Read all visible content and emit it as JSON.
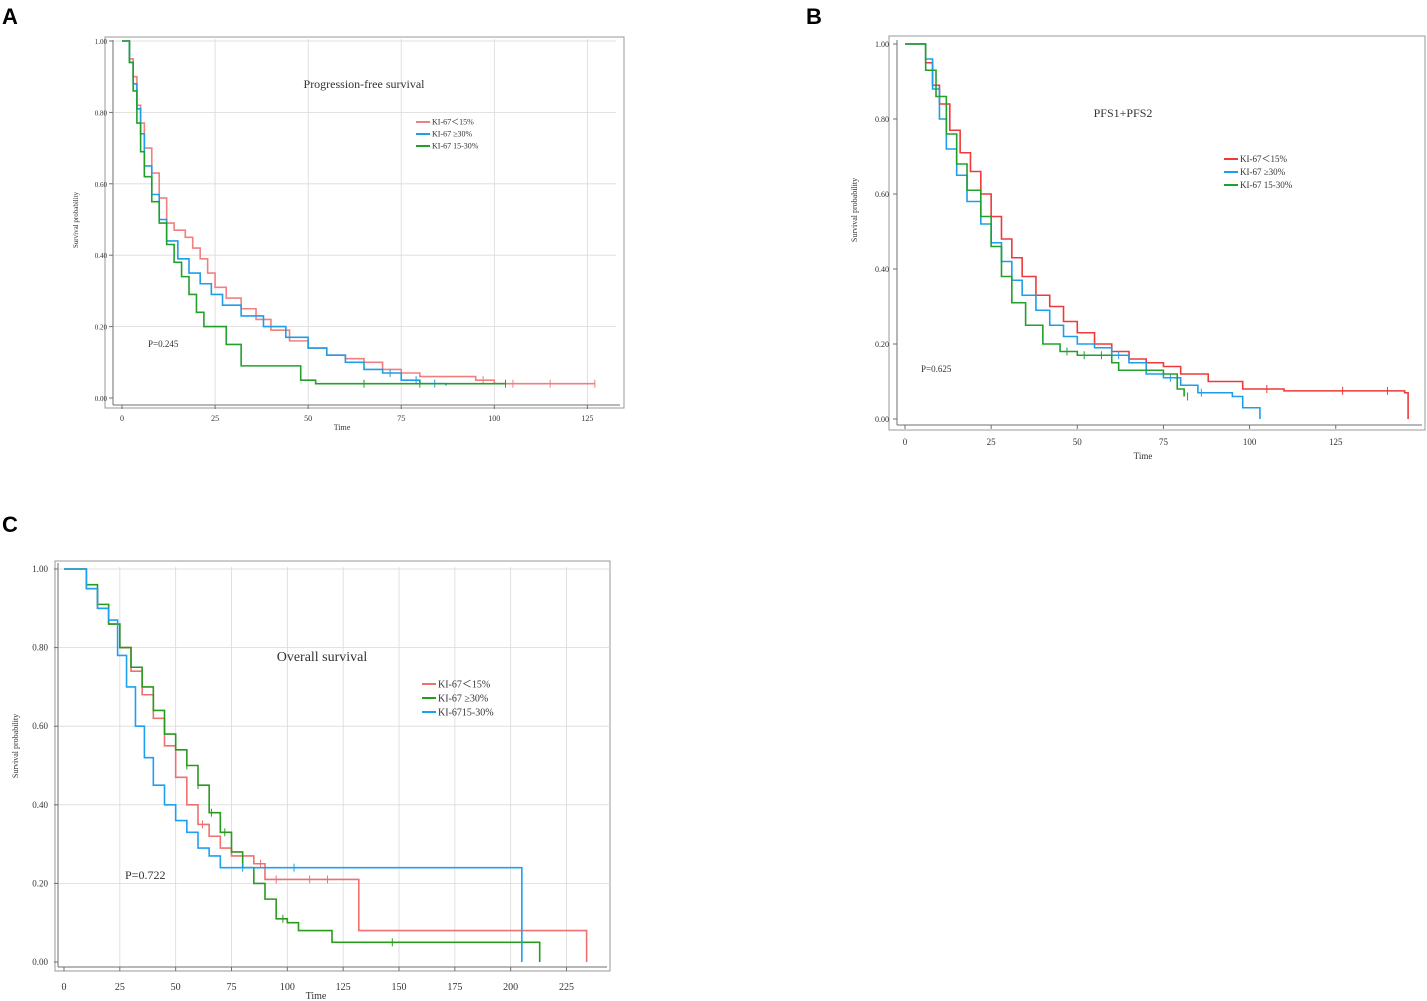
{
  "panels": [
    {
      "letter": "A"
    },
    {
      "letter": "B"
    },
    {
      "letter": "C"
    }
  ],
  "chart_data": [
    {
      "type": "line",
      "title": "Progression-free survival",
      "xlabel": "Time",
      "ylabel": "Survival probability",
      "xlim": [
        0,
        130
      ],
      "ylim": [
        0,
        1
      ],
      "xticks": [
        0,
        25,
        50,
        75,
        100,
        125
      ],
      "yticks": [
        0,
        0.2,
        0.4,
        0.6,
        0.8,
        1.0
      ],
      "ytick_labels": [
        "0.00",
        "0.20",
        "0.40",
        "0.60",
        "0.80",
        "1.00"
      ],
      "grid": true,
      "annotation": "P=0.245",
      "legend_position": "top-right",
      "series": [
        {
          "name": "KI-67＜15%",
          "color": "#f08080",
          "points": [
            [
              0,
              1
            ],
            [
              1,
              1
            ],
            [
              2,
              0.95
            ],
            [
              3,
              0.9
            ],
            [
              4,
              0.82
            ],
            [
              5,
              0.77
            ],
            [
              6,
              0.7
            ],
            [
              8,
              0.63
            ],
            [
              10,
              0.56
            ],
            [
              12,
              0.49
            ],
            [
              14,
              0.47
            ],
            [
              17,
              0.45
            ],
            [
              19,
              0.42
            ],
            [
              21,
              0.39
            ],
            [
              23,
              0.35
            ],
            [
              25,
              0.31
            ],
            [
              28,
              0.28
            ],
            [
              32,
              0.25
            ],
            [
              36,
              0.22
            ],
            [
              40,
              0.19
            ],
            [
              45,
              0.16
            ],
            [
              50,
              0.14
            ],
            [
              55,
              0.12
            ],
            [
              60,
              0.11
            ],
            [
              65,
              0.1
            ],
            [
              70,
              0.08
            ],
            [
              75,
              0.07
            ],
            [
              80,
              0.06
            ],
            [
              95,
              0.05
            ],
            [
              100,
              0.04
            ],
            [
              127,
              0.04
            ]
          ],
          "censored": [
            97,
            105,
            115,
            127
          ]
        },
        {
          "name": "KI-67 ≥30%",
          "color": "#1e9ee8",
          "points": [
            [
              0,
              1
            ],
            [
              1,
              1
            ],
            [
              2,
              0.94
            ],
            [
              3,
              0.88
            ],
            [
              4,
              0.81
            ],
            [
              5,
              0.74
            ],
            [
              6,
              0.65
            ],
            [
              8,
              0.57
            ],
            [
              10,
              0.5
            ],
            [
              12,
              0.44
            ],
            [
              15,
              0.39
            ],
            [
              18,
              0.35
            ],
            [
              21,
              0.32
            ],
            [
              24,
              0.29
            ],
            [
              27,
              0.26
            ],
            [
              32,
              0.23
            ],
            [
              38,
              0.2
            ],
            [
              44,
              0.17
            ],
            [
              50,
              0.14
            ],
            [
              55,
              0.12
            ],
            [
              60,
              0.1
            ],
            [
              65,
              0.08
            ],
            [
              70,
              0.07
            ],
            [
              75,
              0.05
            ],
            [
              80,
              0.04
            ],
            [
              87,
              0.035
            ]
          ],
          "censored": [
            72,
            79,
            84
          ]
        },
        {
          "name": "KI-67 15-30%",
          "color": "#22a02c",
          "points": [
            [
              0,
              1
            ],
            [
              1,
              1
            ],
            [
              2,
              0.94
            ],
            [
              3,
              0.86
            ],
            [
              4,
              0.77
            ],
            [
              5,
              0.69
            ],
            [
              6,
              0.62
            ],
            [
              8,
              0.55
            ],
            [
              10,
              0.49
            ],
            [
              12,
              0.43
            ],
            [
              14,
              0.38
            ],
            [
              16,
              0.34
            ],
            [
              18,
              0.29
            ],
            [
              20,
              0.24
            ],
            [
              22,
              0.2
            ],
            [
              28,
              0.15
            ],
            [
              32,
              0.09
            ],
            [
              48,
              0.05
            ],
            [
              52,
              0.04
            ],
            [
              103,
              0.04
            ]
          ],
          "censored": [
            65,
            80,
            103
          ]
        }
      ]
    },
    {
      "type": "line",
      "title": "PFS1+PFS2",
      "xlabel": "Time",
      "ylabel": "Survival probability",
      "xlim": [
        0,
        148
      ],
      "ylim": [
        0,
        1
      ],
      "xticks": [
        0,
        25,
        50,
        75,
        100,
        125
      ],
      "yticks": [
        0,
        0.2,
        0.4,
        0.6,
        0.8,
        1.0
      ],
      "ytick_labels": [
        "0.00",
        "0.20",
        "0.40",
        "0.60",
        "0.80",
        "1.00"
      ],
      "grid": false,
      "annotation": "P=0.625",
      "legend_position": "top-right",
      "series": [
        {
          "name": "KI-67＜15%",
          "color": "#ee3a3a",
          "points": [
            [
              0,
              1
            ],
            [
              4,
              1
            ],
            [
              6,
              0.95
            ],
            [
              8,
              0.89
            ],
            [
              10,
              0.84
            ],
            [
              13,
              0.77
            ],
            [
              16,
              0.71
            ],
            [
              19,
              0.66
            ],
            [
              22,
              0.6
            ],
            [
              25,
              0.54
            ],
            [
              28,
              0.48
            ],
            [
              31,
              0.43
            ],
            [
              34,
              0.38
            ],
            [
              38,
              0.33
            ],
            [
              42,
              0.3
            ],
            [
              46,
              0.26
            ],
            [
              50,
              0.23
            ],
            [
              55,
              0.2
            ],
            [
              60,
              0.18
            ],
            [
              65,
              0.16
            ],
            [
              70,
              0.15
            ],
            [
              75,
              0.14
            ],
            [
              80,
              0.12
            ],
            [
              88,
              0.1
            ],
            [
              98,
              0.08
            ],
            [
              110,
              0.075
            ],
            [
              145,
              0.07
            ],
            [
              146,
              0
            ]
          ],
          "censored": [
            105,
            127,
            140
          ]
        },
        {
          "name": "KI-67 ≥30%",
          "color": "#1e9ee8",
          "points": [
            [
              0,
              1
            ],
            [
              4,
              1
            ],
            [
              6,
              0.96
            ],
            [
              8,
              0.88
            ],
            [
              10,
              0.8
            ],
            [
              12,
              0.72
            ],
            [
              15,
              0.65
            ],
            [
              18,
              0.58
            ],
            [
              22,
              0.52
            ],
            [
              25,
              0.47
            ],
            [
              28,
              0.42
            ],
            [
              31,
              0.37
            ],
            [
              34,
              0.33
            ],
            [
              38,
              0.29
            ],
            [
              42,
              0.25
            ],
            [
              46,
              0.22
            ],
            [
              50,
              0.2
            ],
            [
              55,
              0.19
            ],
            [
              60,
              0.17
            ],
            [
              65,
              0.15
            ],
            [
              70,
              0.12
            ],
            [
              75,
              0.11
            ],
            [
              80,
              0.09
            ],
            [
              85,
              0.07
            ],
            [
              95,
              0.06
            ],
            [
              98,
              0.03
            ],
            [
              103,
              0
            ]
          ],
          "censored": [
            62,
            77,
            86
          ]
        },
        {
          "name": "KI-67 15-30%",
          "color": "#22a02c",
          "points": [
            [
              0,
              1
            ],
            [
              4,
              1
            ],
            [
              6,
              0.93
            ],
            [
              9,
              0.86
            ],
            [
              12,
              0.76
            ],
            [
              15,
              0.68
            ],
            [
              18,
              0.61
            ],
            [
              22,
              0.54
            ],
            [
              25,
              0.46
            ],
            [
              28,
              0.38
            ],
            [
              31,
              0.31
            ],
            [
              35,
              0.25
            ],
            [
              40,
              0.2
            ],
            [
              45,
              0.18
            ],
            [
              50,
              0.17
            ],
            [
              60,
              0.15
            ],
            [
              62,
              0.13
            ],
            [
              75,
              0.12
            ],
            [
              79,
              0.08
            ],
            [
              81,
              0.06
            ]
          ],
          "censored": [
            47,
            52,
            57,
            82
          ]
        }
      ]
    },
    {
      "type": "line",
      "title": "Overall survival",
      "xlabel": "Time",
      "ylabel": "Survival probability",
      "xlim": [
        0,
        240
      ],
      "ylim": [
        0,
        1
      ],
      "xticks": [
        0,
        25,
        50,
        75,
        100,
        125,
        150,
        175,
        200,
        225
      ],
      "yticks": [
        0,
        0.2,
        0.4,
        0.6,
        0.8,
        1.0
      ],
      "ytick_labels": [
        "0.00",
        "0.20",
        "0.40",
        "0.60",
        "0.80",
        "1.00"
      ],
      "grid": true,
      "annotation": "P=0.722",
      "legend_position": "top-right",
      "series": [
        {
          "name": "KI-67＜15%",
          "color": "#f07070",
          "points": [
            [
              0,
              1
            ],
            [
              6,
              1
            ],
            [
              10,
              0.95
            ],
            [
              15,
              0.9
            ],
            [
              20,
              0.86
            ],
            [
              25,
              0.8
            ],
            [
              30,
              0.74
            ],
            [
              35,
              0.68
            ],
            [
              40,
              0.62
            ],
            [
              45,
              0.55
            ],
            [
              50,
              0.47
            ],
            [
              55,
              0.4
            ],
            [
              60,
              0.35
            ],
            [
              65,
              0.32
            ],
            [
              70,
              0.29
            ],
            [
              75,
              0.27
            ],
            [
              85,
              0.25
            ],
            [
              90,
              0.21
            ],
            [
              130,
              0.21
            ],
            [
              132,
              0.08
            ],
            [
              234,
              0.08
            ],
            [
              234,
              0
            ]
          ],
          "censored": [
            62,
            88,
            95,
            110,
            118
          ]
        },
        {
          "name": "KI-67 ≥30%",
          "color": "#2a9a1f",
          "points": [
            [
              0,
              1
            ],
            [
              6,
              1
            ],
            [
              10,
              0.96
            ],
            [
              15,
              0.91
            ],
            [
              20,
              0.86
            ],
            [
              25,
              0.8
            ],
            [
              30,
              0.75
            ],
            [
              35,
              0.7
            ],
            [
              40,
              0.64
            ],
            [
              45,
              0.58
            ],
            [
              50,
              0.54
            ],
            [
              55,
              0.5
            ],
            [
              60,
              0.45
            ],
            [
              65,
              0.38
            ],
            [
              70,
              0.33
            ],
            [
              75,
              0.28
            ],
            [
              80,
              0.24
            ],
            [
              85,
              0.2
            ],
            [
              90,
              0.16
            ],
            [
              95,
              0.11
            ],
            [
              100,
              0.1
            ],
            [
              105,
              0.08
            ],
            [
              120,
              0.05
            ],
            [
              205,
              0.05
            ],
            [
              213,
              0.05
            ],
            [
              213,
              0
            ]
          ],
          "censored": [
            55,
            60,
            66,
            72,
            98,
            147
          ]
        },
        {
          "name": "KI-6715-30%",
          "color": "#1ea0f0",
          "points": [
            [
              0,
              1
            ],
            [
              6,
              1
            ],
            [
              10,
              0.95
            ],
            [
              15,
              0.9
            ],
            [
              20,
              0.87
            ],
            [
              24,
              0.78
            ],
            [
              28,
              0.7
            ],
            [
              32,
              0.6
            ],
            [
              36,
              0.52
            ],
            [
              40,
              0.45
            ],
            [
              45,
              0.4
            ],
            [
              50,
              0.36
            ],
            [
              55,
              0.33
            ],
            [
              60,
              0.29
            ],
            [
              65,
              0.27
            ],
            [
              70,
              0.24
            ],
            [
              205,
              0.24
            ],
            [
              205,
              0
            ]
          ],
          "censored": [
            80,
            103
          ]
        }
      ]
    }
  ]
}
